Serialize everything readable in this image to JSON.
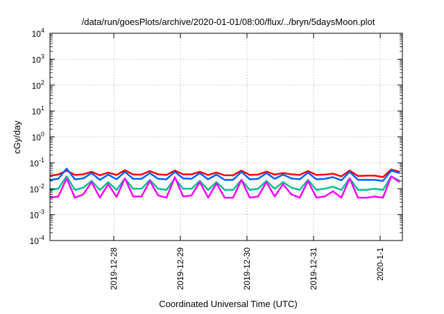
{
  "chart_data": {
    "type": "line",
    "title": "/data/run/goesPlots/archive/2020-01-01/08:00/flux/../bryn/5daysMoon.plot",
    "xlabel": "Coordinated Universal Time (UTC)",
    "ylabel": "cGy/day",
    "yscale": "log",
    "ylim": [
      0.0001,
      10000
    ],
    "y_ticks": [
      {
        "base": "10",
        "exp": "-4",
        "value": 0.0001
      },
      {
        "base": "10",
        "exp": "-3",
        "value": 0.001
      },
      {
        "base": "10",
        "exp": "-2",
        "value": 0.01
      },
      {
        "base": "10",
        "exp": "-1",
        "value": 0.1
      },
      {
        "base": "10",
        "exp": "0",
        "value": 1
      },
      {
        "base": "10",
        "exp": "1",
        "value": 10
      },
      {
        "base": "10",
        "exp": "2",
        "value": 100
      },
      {
        "base": "10",
        "exp": "3",
        "value": 1000
      },
      {
        "base": "10",
        "exp": "4",
        "value": 10000
      }
    ],
    "xlim": [
      "2019-12-27 01:00",
      "2020-01-01 08:00"
    ],
    "x_ticks": [
      {
        "label": "2019-12-28",
        "value": "2019-12-28 00:00"
      },
      {
        "label": "2019-12-29",
        "value": "2019-12-29 00:00"
      },
      {
        "label": "2019-12-30",
        "value": "2019-12-30 00:00"
      },
      {
        "label": "2019-12-31",
        "value": "2019-12-31 00:00"
      },
      {
        "label": "2020-1-1",
        "value": "2020-01-01 00:00"
      }
    ],
    "grid": true,
    "series": [
      {
        "color": "#ff0000",
        "x": [
          "2019-12-27 01:00",
          "2019-12-27 04:00",
          "2019-12-27 07:00",
          "2019-12-27 10:00",
          "2019-12-27 13:00",
          "2019-12-27 16:00",
          "2019-12-27 19:00",
          "2019-12-27 22:00",
          "2019-12-28 01:00",
          "2019-12-28 04:00",
          "2019-12-28 07:00",
          "2019-12-28 10:00",
          "2019-12-28 13:00",
          "2019-12-28 16:00",
          "2019-12-28 19:00",
          "2019-12-28 22:00",
          "2019-12-29 01:00",
          "2019-12-29 04:00",
          "2019-12-29 07:00",
          "2019-12-29 10:00",
          "2019-12-29 13:00",
          "2019-12-29 16:00",
          "2019-12-29 19:00",
          "2019-12-29 22:00",
          "2019-12-30 01:00",
          "2019-12-30 04:00",
          "2019-12-30 07:00",
          "2019-12-30 10:00",
          "2019-12-30 13:00",
          "2019-12-30 16:00",
          "2019-12-30 19:00",
          "2019-12-30 22:00",
          "2019-12-31 01:00",
          "2019-12-31 04:00",
          "2019-12-31 07:00",
          "2019-12-31 10:00",
          "2019-12-31 13:00",
          "2019-12-31 16:00",
          "2019-12-31 19:00",
          "2019-12-31 22:00",
          "2020-01-01 01:00",
          "2020-01-01 04:00",
          "2020-01-01 07:00"
        ],
        "values": [
          0.032,
          0.035,
          0.05,
          0.034,
          0.036,
          0.045,
          0.033,
          0.042,
          0.034,
          0.052,
          0.035,
          0.035,
          0.048,
          0.036,
          0.034,
          0.05,
          0.036,
          0.036,
          0.045,
          0.034,
          0.042,
          0.033,
          0.033,
          0.05,
          0.034,
          0.035,
          0.046,
          0.035,
          0.04,
          0.036,
          0.034,
          0.048,
          0.034,
          0.035,
          0.038,
          0.03,
          0.05,
          0.031,
          0.032,
          0.032,
          0.028,
          0.055,
          0.045
        ]
      },
      {
        "color": "#0060ff",
        "x": [
          "2019-12-27 01:00",
          "2019-12-27 04:00",
          "2019-12-27 07:00",
          "2019-12-27 10:00",
          "2019-12-27 13:00",
          "2019-12-27 16:00",
          "2019-12-27 19:00",
          "2019-12-27 22:00",
          "2019-12-28 01:00",
          "2019-12-28 04:00",
          "2019-12-28 07:00",
          "2019-12-28 10:00",
          "2019-12-28 13:00",
          "2019-12-28 16:00",
          "2019-12-28 19:00",
          "2019-12-28 22:00",
          "2019-12-29 01:00",
          "2019-12-29 04:00",
          "2019-12-29 07:00",
          "2019-12-29 10:00",
          "2019-12-29 13:00",
          "2019-12-29 16:00",
          "2019-12-29 19:00",
          "2019-12-29 22:00",
          "2019-12-30 01:00",
          "2019-12-30 04:00",
          "2019-12-30 07:00",
          "2019-12-30 10:00",
          "2019-12-30 13:00",
          "2019-12-30 16:00",
          "2019-12-30 19:00",
          "2019-12-30 22:00",
          "2019-12-31 01:00",
          "2019-12-31 04:00",
          "2019-12-31 07:00",
          "2019-12-31 10:00",
          "2019-12-31 13:00",
          "2019-12-31 16:00",
          "2019-12-31 19:00",
          "2019-12-31 22:00",
          "2020-01-01 01:00",
          "2020-01-01 04:00",
          "2020-01-01 07:00"
        ],
        "values": [
          0.022,
          0.024,
          0.06,
          0.023,
          0.025,
          0.04,
          0.022,
          0.035,
          0.023,
          0.045,
          0.024,
          0.024,
          0.04,
          0.024,
          0.023,
          0.045,
          0.025,
          0.024,
          0.04,
          0.023,
          0.035,
          0.022,
          0.022,
          0.045,
          0.023,
          0.024,
          0.04,
          0.024,
          0.035,
          0.025,
          0.023,
          0.042,
          0.023,
          0.024,
          0.028,
          0.021,
          0.045,
          0.022,
          0.022,
          0.022,
          0.02,
          0.05,
          0.04
        ]
      },
      {
        "color": "#00c090",
        "x": [
          "2019-12-27 01:00",
          "2019-12-27 04:00",
          "2019-12-27 07:00",
          "2019-12-27 10:00",
          "2019-12-27 13:00",
          "2019-12-27 16:00",
          "2019-12-27 19:00",
          "2019-12-27 22:00",
          "2019-12-28 01:00",
          "2019-12-28 04:00",
          "2019-12-28 07:00",
          "2019-12-28 10:00",
          "2019-12-28 13:00",
          "2019-12-28 16:00",
          "2019-12-28 19:00",
          "2019-12-28 22:00",
          "2019-12-29 01:00",
          "2019-12-29 04:00",
          "2019-12-29 07:00",
          "2019-12-29 10:00",
          "2019-12-29 13:00",
          "2019-12-29 16:00",
          "2019-12-29 19:00",
          "2019-12-29 22:00",
          "2019-12-30 01:00",
          "2019-12-30 04:00",
          "2019-12-30 07:00",
          "2019-12-30 10:00",
          "2019-12-30 13:00",
          "2019-12-30 16:00",
          "2019-12-30 19:00",
          "2019-12-30 22:00",
          "2019-12-31 01:00",
          "2019-12-31 04:00",
          "2019-12-31 07:00",
          "2019-12-31 10:00",
          "2019-12-31 13:00",
          "2019-12-31 16:00",
          "2019-12-31 19:00",
          "2019-12-31 22:00",
          "2020-01-01 01:00",
          "2020-01-01 04:00",
          "2020-01-01 07:00"
        ],
        "values": [
          0.009,
          0.01,
          0.03,
          0.009,
          0.011,
          0.02,
          0.009,
          0.018,
          0.009,
          0.025,
          0.01,
          0.01,
          0.022,
          0.01,
          0.009,
          0.025,
          0.01,
          0.01,
          0.02,
          0.009,
          0.018,
          0.009,
          0.009,
          0.022,
          0.009,
          0.01,
          0.02,
          0.01,
          0.018,
          0.011,
          0.009,
          0.022,
          0.009,
          0.01,
          0.012,
          0.009,
          0.025,
          0.009,
          0.009,
          0.01,
          0.009,
          0.03,
          0.02
        ]
      },
      {
        "color": "#ff00ff",
        "x": [
          "2019-12-27 01:00",
          "2019-12-27 04:00",
          "2019-12-27 07:00",
          "2019-12-27 10:00",
          "2019-12-27 13:00",
          "2019-12-27 16:00",
          "2019-12-27 19:00",
          "2019-12-27 22:00",
          "2019-12-28 01:00",
          "2019-12-28 04:00",
          "2019-12-28 07:00",
          "2019-12-28 10:00",
          "2019-12-28 13:00",
          "2019-12-28 16:00",
          "2019-12-28 19:00",
          "2019-12-28 22:00",
          "2019-12-29 01:00",
          "2019-12-29 04:00",
          "2019-12-29 07:00",
          "2019-12-29 10:00",
          "2019-12-29 13:00",
          "2019-12-29 16:00",
          "2019-12-29 19:00",
          "2019-12-29 22:00",
          "2019-12-30 01:00",
          "2019-12-30 04:00",
          "2019-12-30 07:00",
          "2019-12-30 10:00",
          "2019-12-30 13:00",
          "2019-12-30 16:00",
          "2019-12-30 19:00",
          "2019-12-30 22:00",
          "2019-12-31 01:00",
          "2019-12-31 04:00",
          "2019-12-31 07:00",
          "2019-12-31 10:00",
          "2019-12-31 13:00",
          "2019-12-31 16:00",
          "2019-12-31 19:00",
          "2019-12-31 22:00",
          "2020-01-01 01:00",
          "2020-01-01 04:00",
          "2020-01-01 07:00"
        ],
        "values": [
          0.0045,
          0.005,
          0.025,
          0.0045,
          0.006,
          0.018,
          0.0045,
          0.015,
          0.0048,
          0.025,
          0.005,
          0.005,
          0.02,
          0.0055,
          0.0045,
          0.028,
          0.005,
          0.0055,
          0.018,
          0.0045,
          0.016,
          0.0045,
          0.0045,
          0.022,
          0.0045,
          0.005,
          0.018,
          0.005,
          0.015,
          0.006,
          0.0045,
          0.02,
          0.0045,
          0.005,
          0.008,
          0.0045,
          0.025,
          0.0045,
          0.0045,
          0.005,
          0.0045,
          0.03,
          0.018
        ]
      }
    ]
  }
}
